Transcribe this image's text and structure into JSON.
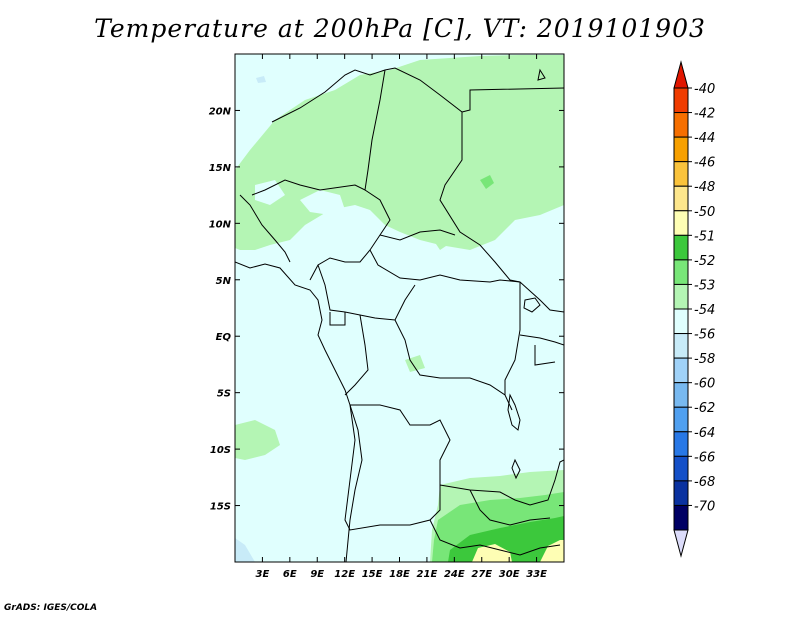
{
  "title": "Temperature at 200hPa [C], VT: 2019101903",
  "credit": "GrADS: IGES/COLA",
  "map": {
    "lon_range": [
      0,
      36
    ],
    "lat_range": [
      -20,
      25
    ],
    "lon_ticks": [
      {
        "value": 3,
        "label": "3E"
      },
      {
        "value": 6,
        "label": "6E"
      },
      {
        "value": 9,
        "label": "9E"
      },
      {
        "value": 12,
        "label": "12E"
      },
      {
        "value": 15,
        "label": "15E"
      },
      {
        "value": 18,
        "label": "18E"
      },
      {
        "value": 21,
        "label": "21E"
      },
      {
        "value": 24,
        "label": "24E"
      },
      {
        "value": 27,
        "label": "27E"
      },
      {
        "value": 30,
        "label": "30E"
      },
      {
        "value": 33,
        "label": "33E"
      }
    ],
    "lat_ticks": [
      {
        "value": 20,
        "label": "20N"
      },
      {
        "value": 15,
        "label": "15N"
      },
      {
        "value": 10,
        "label": "10N"
      },
      {
        "value": 5,
        "label": "5N"
      },
      {
        "value": 0,
        "label": "EQ"
      },
      {
        "value": -5,
        "label": "5S"
      },
      {
        "value": -10,
        "label": "10S"
      },
      {
        "value": -15,
        "label": "15S"
      }
    ],
    "background_color": "#e0fffe"
  },
  "colorbar": {
    "labels": [
      "-40",
      "-42",
      "-44",
      "-46",
      "-48",
      "-50",
      "-51",
      "-52",
      "-53",
      "-54",
      "-56",
      "-58",
      "-60",
      "-62",
      "-64",
      "-66",
      "-68",
      "-70"
    ],
    "colors": [
      "#e11600",
      "#f03c00",
      "#f66f00",
      "#f7a000",
      "#fac33c",
      "#fde68c",
      "#fefeb4",
      "#3cc83c",
      "#78e678",
      "#b4f5b4",
      "#e0fffe",
      "#c8ebf8",
      "#a0d2f8",
      "#78b9f0",
      "#50a0f0",
      "#2878e6",
      "#1450c8",
      "#0a32a0",
      "#000064",
      "#dcdcfa"
    ]
  }
}
